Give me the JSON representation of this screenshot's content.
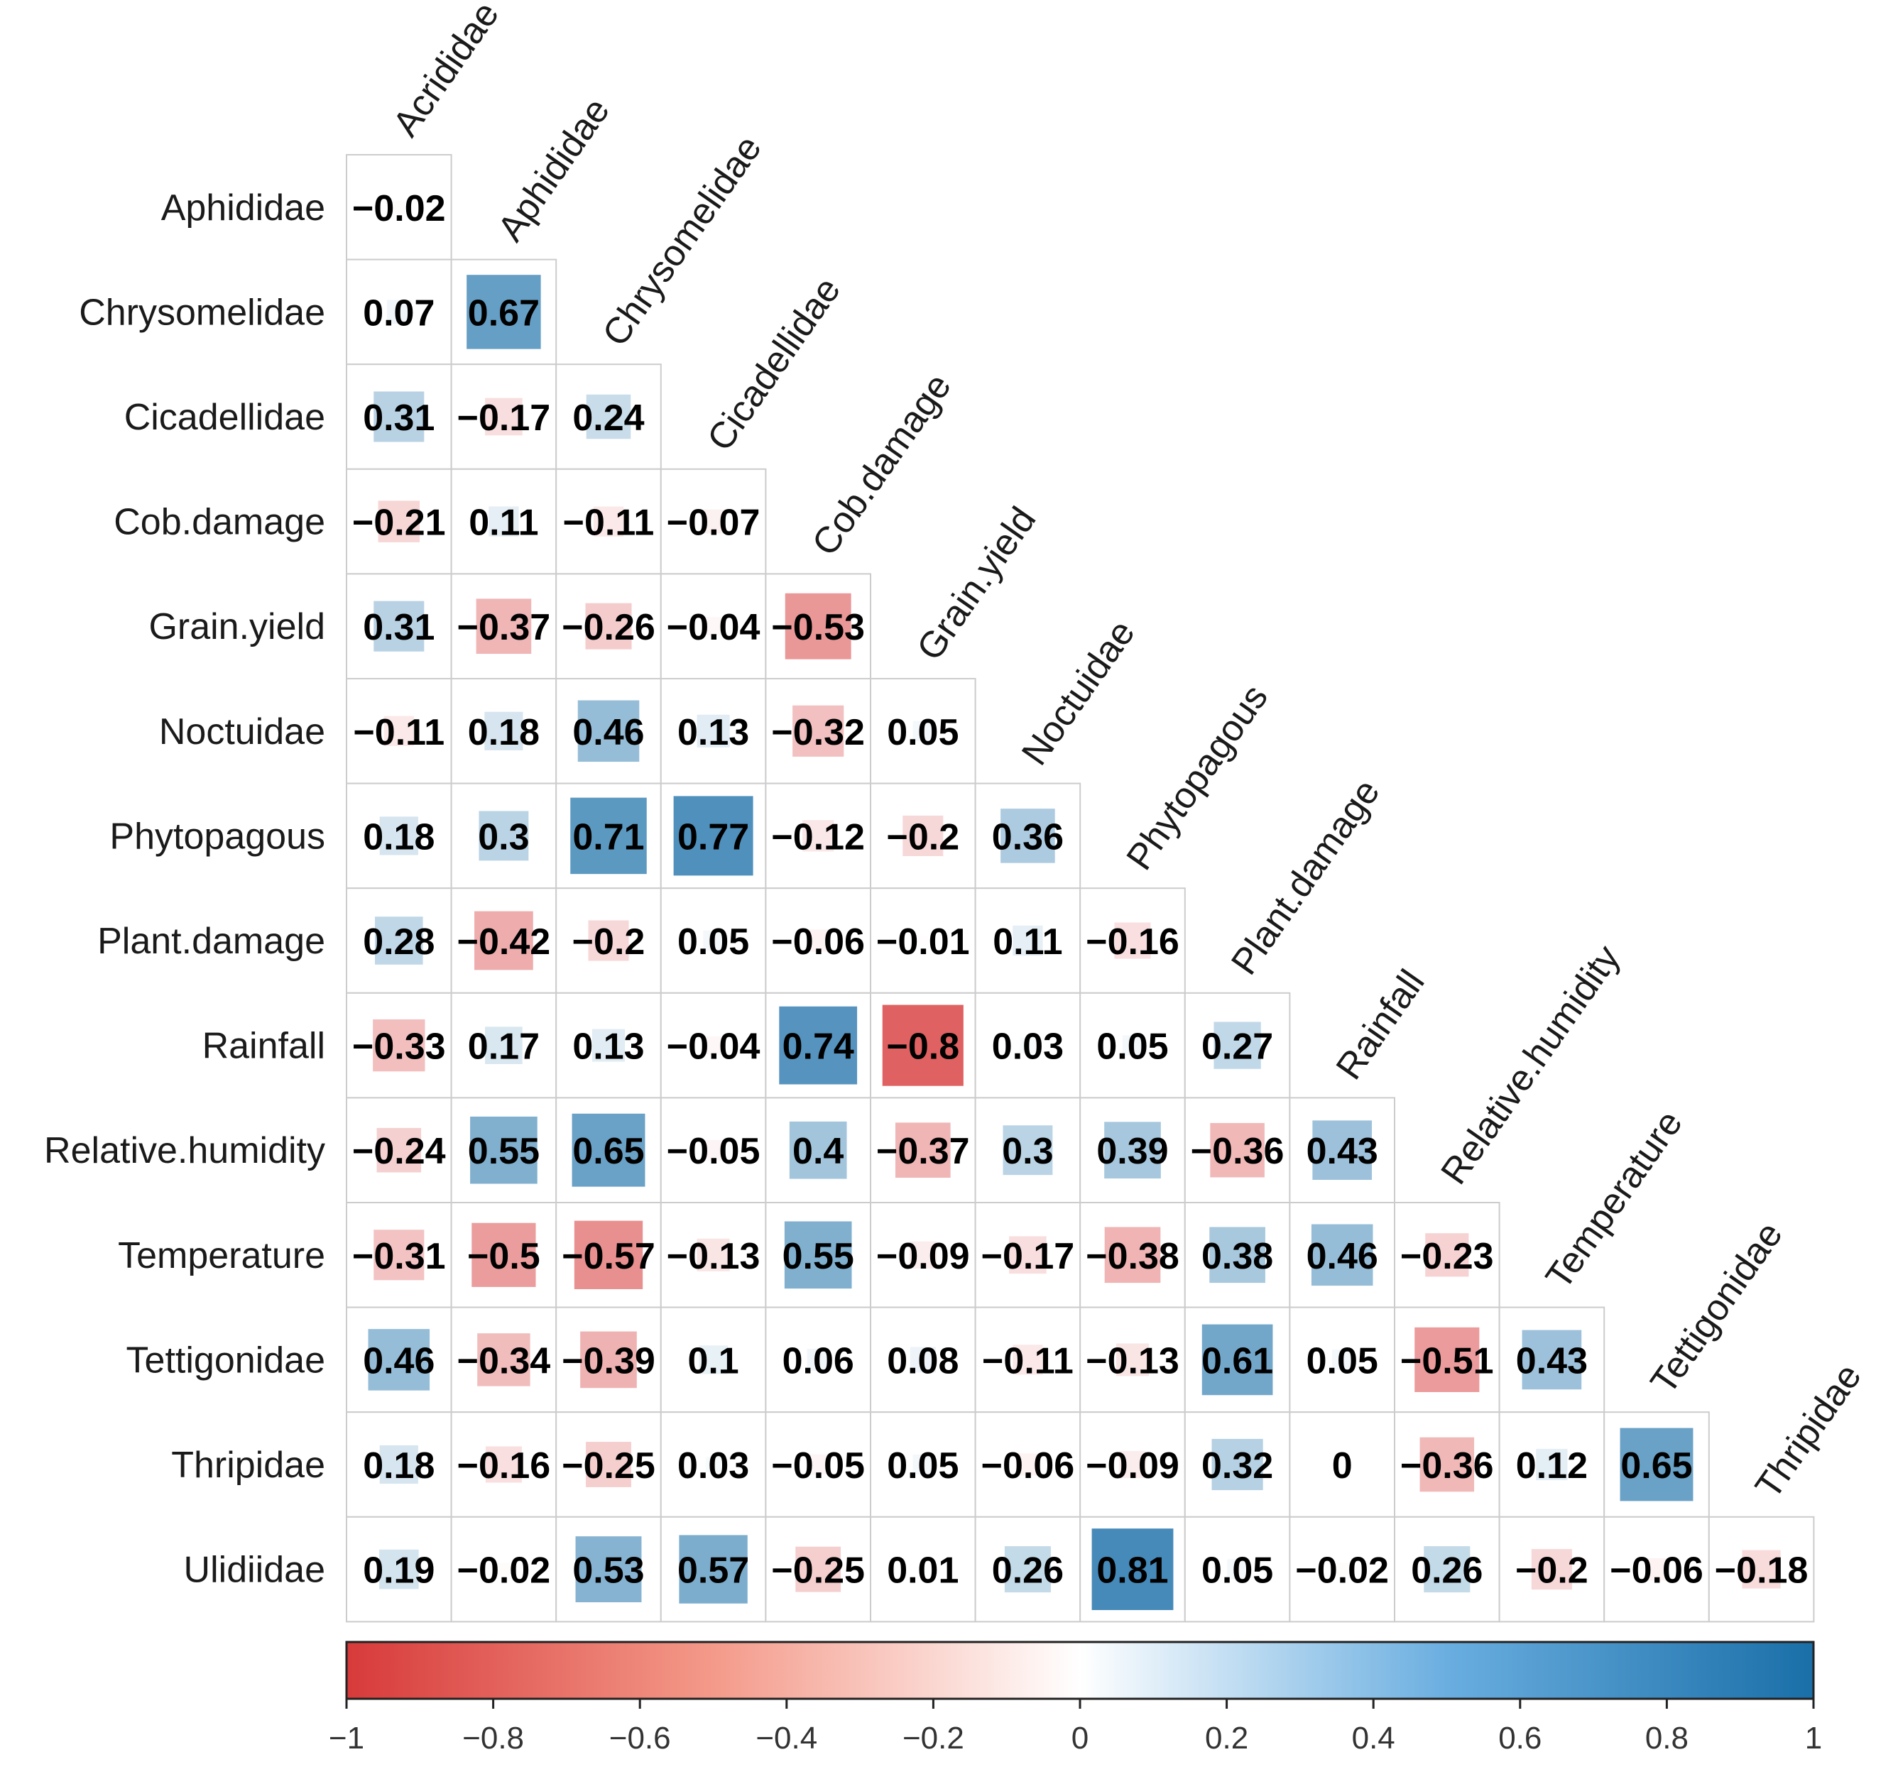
{
  "chart_data": {
    "type": "heatmap",
    "title": "",
    "columns": [
      "Acrididae",
      "Aphididae",
      "Chrysomelidae",
      "Cicadellidae",
      "Cob.damage",
      "Grain.yield",
      "Noctuidae",
      "Phytopagous",
      "Plant.damage",
      "Rainfall",
      "Relative.humidity",
      "Temperature",
      "Tettigonidae",
      "Thripidae"
    ],
    "rows": [
      {
        "label": "Aphididae",
        "values": [
          "-0.02"
        ]
      },
      {
        "label": "Chrysomelidae",
        "values": [
          "0.07",
          "0.67"
        ]
      },
      {
        "label": "Cicadellidae",
        "values": [
          "0.31",
          "-0.17",
          "0.24"
        ]
      },
      {
        "label": "Cob.damage",
        "values": [
          "-0.21",
          "0.11",
          "-0.11",
          "-0.07"
        ]
      },
      {
        "label": "Grain.yield",
        "values": [
          "0.31",
          "-0.37",
          "-0.26",
          "-0.04",
          "-0.53"
        ]
      },
      {
        "label": "Noctuidae",
        "values": [
          "-0.11",
          "0.18",
          "0.46",
          "0.13",
          "-0.32",
          "0.05"
        ]
      },
      {
        "label": "Phytopagous",
        "values": [
          "0.18",
          "0.3",
          "0.71",
          "0.77",
          "-0.12",
          "-0.2",
          "0.36"
        ]
      },
      {
        "label": "Plant.damage",
        "values": [
          "0.28",
          "-0.42",
          "-0.2",
          "0.05",
          "-0.06",
          "-0.01",
          "0.11",
          "-0.16"
        ]
      },
      {
        "label": "Rainfall",
        "values": [
          "-0.33",
          "0.17",
          "0.13",
          "-0.04",
          "0.74",
          "-0.8",
          "0.03",
          "0.05",
          "0.27"
        ]
      },
      {
        "label": "Relative.humidity",
        "values": [
          "-0.24",
          "0.55",
          "0.65",
          "-0.05",
          "0.4",
          "-0.37",
          "0.3",
          "0.39",
          "-0.36",
          "0.43"
        ]
      },
      {
        "label": "Temperature",
        "values": [
          "-0.31",
          "-0.5",
          "-0.57",
          "-0.13",
          "0.55",
          "-0.09",
          "-0.17",
          "-0.38",
          "0.38",
          "0.46",
          "-0.23"
        ]
      },
      {
        "label": "Tettigonidae",
        "values": [
          "0.46",
          "-0.34",
          "-0.39",
          "0.1",
          "0.06",
          "0.08",
          "-0.11",
          "-0.13",
          "0.61",
          "0.05",
          "-0.51",
          "0.43"
        ]
      },
      {
        "label": "Thripidae",
        "values": [
          "0.18",
          "-0.16",
          "-0.25",
          "0.03",
          "-0.05",
          "0.05",
          "-0.06",
          "-0.09",
          "0.32",
          "0",
          "-0.36",
          "0.12",
          "0.65"
        ]
      },
      {
        "label": "Ulidiidae",
        "values": [
          "0.19",
          "-0.02",
          "0.53",
          "0.57",
          "-0.25",
          "0.01",
          "0.26",
          "0.81",
          "0.05",
          "-0.02",
          "0.26",
          "-0.2",
          "-0.06",
          "-0.18"
        ]
      }
    ],
    "colorbar": {
      "range": [
        -1,
        1
      ],
      "ticks": [
        "−1",
        "−0.8",
        "−0.6",
        "−0.4",
        "−0.2",
        "0",
        "0.2",
        "0.4",
        "0.6",
        "0.8",
        "1"
      ],
      "negative_color": "#d73a3a",
      "mid_color": "#ffffff",
      "positive_color": "#1a6fa8"
    }
  }
}
